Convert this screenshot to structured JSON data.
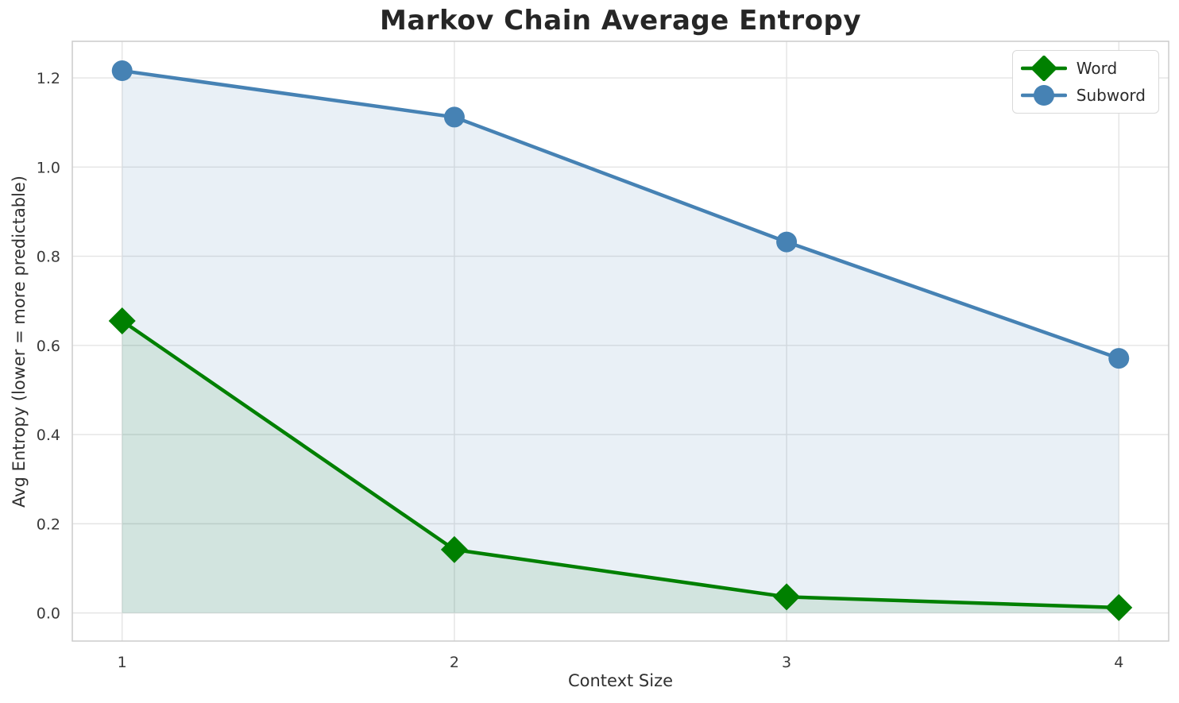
{
  "chart_data": {
    "type": "line",
    "title": "Markov Chain Average Entropy",
    "xlabel": "Context Size",
    "ylabel": "Avg Entropy (lower = more predictable)",
    "x": [
      1,
      2,
      3,
      4
    ],
    "series": [
      {
        "name": "Word",
        "color": "#008000",
        "marker": "diamond",
        "fill_to_zero": true,
        "fill_alpha": 0.1,
        "values": [
          0.655,
          0.142,
          0.036,
          0.012
        ]
      },
      {
        "name": "Subword",
        "color": "#4682B4",
        "marker": "circle",
        "fill_to_zero": true,
        "fill_alpha": 0.12,
        "values": [
          1.216,
          1.112,
          0.832,
          0.571
        ]
      }
    ],
    "xticks": [
      1,
      2,
      3,
      4
    ],
    "xtick_labels": [
      "1",
      "2",
      "3",
      "4"
    ],
    "yticks": [
      0.0,
      0.2,
      0.4,
      0.6,
      0.8,
      1.0,
      1.2
    ],
    "ytick_labels": [
      "0.0",
      "0.2",
      "0.4",
      "0.6",
      "0.8",
      "1.0",
      "1.2"
    ],
    "xlim": [
      0.85,
      4.15
    ],
    "ylim": [
      -0.063,
      1.282
    ],
    "grid": true,
    "legend_position": "upper right"
  }
}
